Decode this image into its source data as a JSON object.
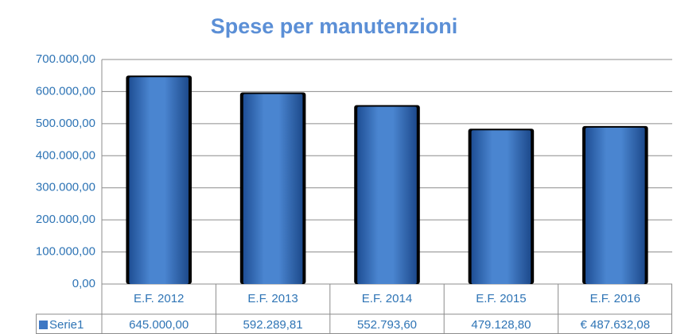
{
  "chart_data": {
    "type": "bar",
    "title": "Spese per manutenzioni",
    "categories": [
      "E.F. 2012",
      "E.F. 2013",
      "E.F. 2014",
      "E.F. 2015",
      "E.F. 2016"
    ],
    "series": [
      {
        "name": "Serie1",
        "color": "#3f78c4",
        "values": [
          645000,
          592289.81,
          552793.6,
          479128.8,
          487632.08
        ],
        "value_labels": [
          "645.000,00",
          "592.289,81",
          "552.793,60",
          "479.128,80",
          "€ 487.632,08"
        ]
      }
    ],
    "ylim": [
      0,
      700000
    ],
    "yticks": [
      {
        "value": 0,
        "label": "0,00"
      },
      {
        "value": 100000,
        "label": "100.000,00"
      },
      {
        "value": 200000,
        "label": "200.000,00"
      },
      {
        "value": 300000,
        "label": "300.000,00"
      },
      {
        "value": 400000,
        "label": "400.000,00"
      },
      {
        "value": 500000,
        "label": "500.000,00"
      },
      {
        "value": 600000,
        "label": "600.000,00"
      },
      {
        "value": 700000,
        "label": "700.000,00"
      }
    ],
    "grid": true,
    "data_table": true
  }
}
